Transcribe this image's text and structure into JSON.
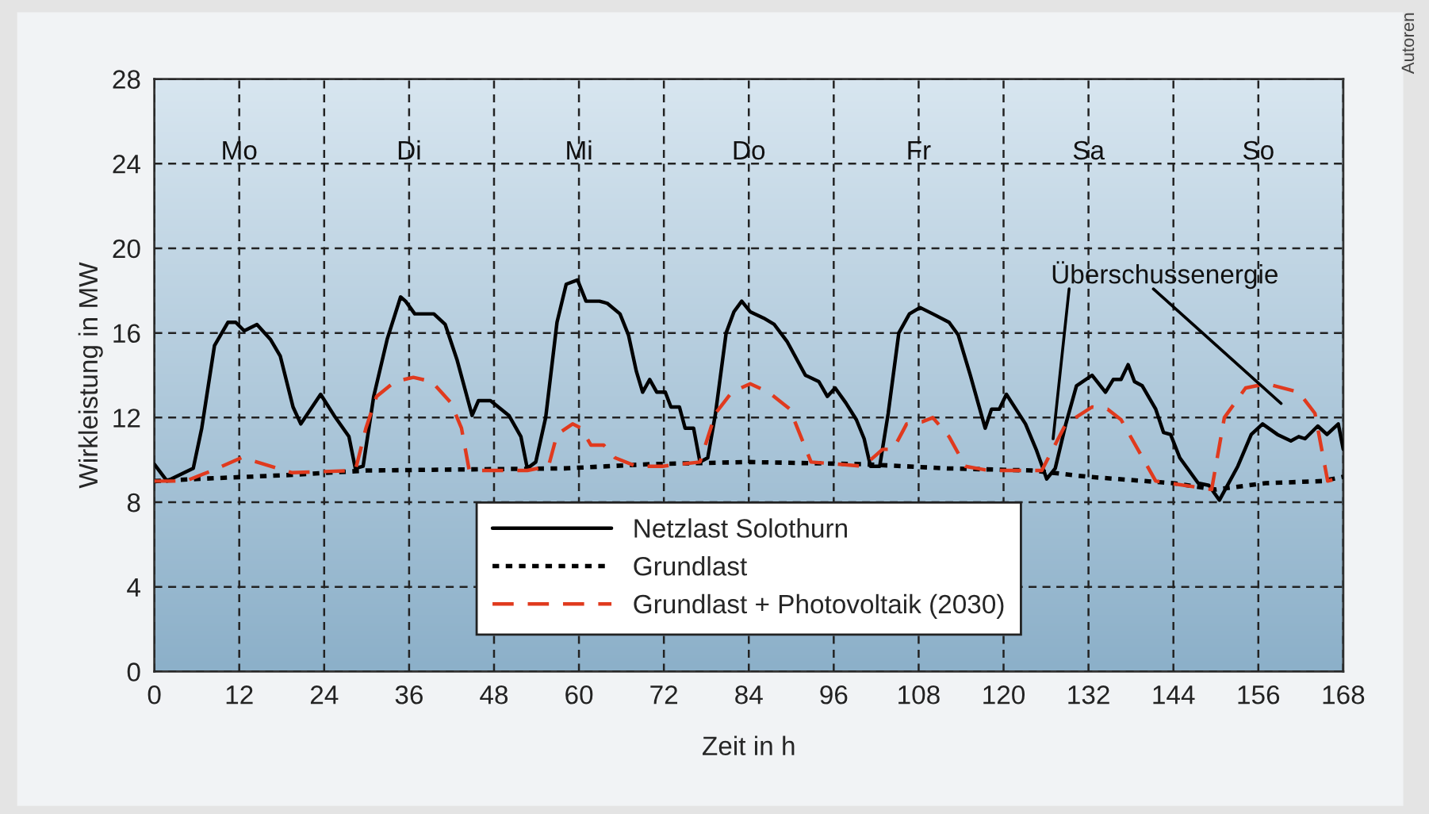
{
  "chart_data": {
    "type": "line",
    "xlabel": "Zeit in h",
    "ylabel": "Wirkleistung in MW",
    "xlim": [
      0,
      168
    ],
    "xticks": [
      0,
      12,
      24,
      36,
      48,
      60,
      72,
      84,
      96,
      108,
      120,
      132,
      144,
      156,
      168
    ],
    "ylim": [
      0,
      28
    ],
    "yticks": [
      0,
      4,
      8,
      12,
      16,
      20,
      24,
      28
    ],
    "grid": true,
    "legend": "bottom",
    "series": [
      {
        "name": "Netzlast Solothurn",
        "color": "#000000",
        "line_style": "solid",
        "x": [
          0,
          1.8,
          5.5,
          6.7,
          8.5,
          10.4,
          11.5,
          12.7,
          14.5,
          16.4,
          17.8,
          19.6,
          20.7,
          23.5,
          25.4,
          27.5,
          28.4,
          29.5,
          31,
          32.9,
          34.8,
          35.5,
          36.8,
          39.5,
          41.1,
          42.8,
          44.9,
          45.8,
          47.5,
          50.1,
          51.8,
          52.7,
          53.9,
          55.3,
          56.9,
          58.2,
          59.8,
          61,
          62.9,
          64,
          65.8,
          67,
          68.1,
          69,
          70,
          71,
          72.2,
          73,
          74.2,
          75,
          76.2,
          77.1,
          78.2,
          79.3,
          80.8,
          81.9,
          83,
          84.2,
          86.1,
          87.6,
          89.4,
          92,
          93.9,
          95.1,
          96.2,
          97.7,
          99.2,
          100.3,
          101.2,
          102.5,
          103.7,
          105.2,
          106.7,
          108.2,
          110,
          112.3,
          113.6,
          115.3,
          117.4,
          118.3,
          119.4,
          120.4,
          123.1,
          124.6,
          126.1,
          127.3,
          128.8,
          130.3,
          132.5,
          134.4,
          135.5,
          136.6,
          137.6,
          138.5,
          139.6,
          141.5,
          142.6,
          143.6,
          144.9,
          147.5,
          149,
          150.5,
          153.1,
          155,
          156.6,
          158.7,
          160.6,
          161.7,
          162.6,
          164.4,
          165.7,
          167.3,
          168
        ],
        "values": [
          9.8,
          9.0,
          9.6,
          11.5,
          15.4,
          16.5,
          16.5,
          16.1,
          16.4,
          15.7,
          14.9,
          12.5,
          11.7,
          13.1,
          12.1,
          11.1,
          9.6,
          9.7,
          13.0,
          15.7,
          17.7,
          17.5,
          16.9,
          16.9,
          16.4,
          14.7,
          12.1,
          12.8,
          12.8,
          12.1,
          11.1,
          9.6,
          9.9,
          12.0,
          16.5,
          18.3,
          18.5,
          17.5,
          17.5,
          17.4,
          16.9,
          15.9,
          14.2,
          13.2,
          13.8,
          13.2,
          13.2,
          12.5,
          12.5,
          11.5,
          11.5,
          9.9,
          10.1,
          12.2,
          16.0,
          17.0,
          17.5,
          17.0,
          16.7,
          16.4,
          15.6,
          14.0,
          13.7,
          13.0,
          13.4,
          12.7,
          11.9,
          11.0,
          9.7,
          9.7,
          12.2,
          16.0,
          16.9,
          17.2,
          16.9,
          16.5,
          15.9,
          14.0,
          11.5,
          12.4,
          12.4,
          13.1,
          11.7,
          10.5,
          9.1,
          9.6,
          11.7,
          13.5,
          14.0,
          13.2,
          13.8,
          13.8,
          14.5,
          13.7,
          13.5,
          12.4,
          11.3,
          11.2,
          10.1,
          8.9,
          8.8,
          8.1,
          9.7,
          11.2,
          11.7,
          11.2,
          10.9,
          11.1,
          11.0,
          11.6,
          11.2,
          11.7,
          10.5
        ]
      },
      {
        "name": "Grundlast",
        "color": "#000000",
        "line_style": "dotted",
        "x": [
          0,
          6,
          20,
          30,
          58,
          70,
          84,
          100,
          112,
          124,
          132,
          144,
          150,
          157,
          165,
          168
        ],
        "values": [
          9.0,
          9.1,
          9.3,
          9.5,
          9.6,
          9.8,
          9.9,
          9.8,
          9.6,
          9.5,
          9.2,
          8.9,
          8.6,
          8.9,
          9.0,
          9.2
        ]
      },
      {
        "name": "Grundlast + Photovoltaik (2030)",
        "color": "#e03a1e",
        "line_style": "dashed",
        "x": [
          0,
          4.4,
          8.2,
          12.3,
          14.5,
          19.4,
          28.4,
          29.9,
          31.4,
          34,
          36.6,
          39.2,
          41.9,
          43.4,
          44.5,
          52.7,
          55.7,
          56.9,
          59.1,
          60.3,
          61.7,
          63.5,
          65.1,
          68.1,
          71.8,
          77.1,
          79.3,
          81.6,
          84.2,
          86.8,
          89.8,
          92.8,
          100.2,
          102.9,
          104.4,
          106.3,
          108.5,
          110,
          112.3,
          114.6,
          117.9,
          125.4,
          128.8,
          132.5,
          134.7,
          136.6,
          141.5,
          147.5,
          149.4,
          151.2,
          154.2,
          157.2,
          161.7,
          164,
          165.8,
          168
        ],
        "values": [
          9.0,
          9.0,
          9.5,
          10.1,
          9.9,
          9.4,
          9.5,
          11.5,
          13.0,
          13.7,
          13.9,
          13.7,
          12.7,
          11.5,
          9.5,
          9.5,
          9.7,
          11.2,
          11.7,
          11.5,
          10.7,
          10.7,
          10.1,
          9.7,
          9.7,
          9.9,
          12.2,
          13.2,
          13.6,
          13.2,
          12.4,
          9.9,
          9.7,
          10.5,
          10.5,
          11.7,
          11.8,
          12.0,
          11.1,
          9.7,
          9.5,
          9.5,
          11.7,
          12.5,
          12.4,
          11.9,
          9.0,
          8.7,
          8.6,
          12.0,
          13.4,
          13.6,
          13.2,
          12.2,
          9.0,
          9.2
        ]
      }
    ],
    "annotations": [
      "Mo",
      "Di",
      "Mi",
      "Do",
      "Fr",
      "Sa",
      "So",
      {
        "text": "Überschussenergie",
        "x": 127,
        "y": 11
      },
      "Autoren"
    ]
  }
}
